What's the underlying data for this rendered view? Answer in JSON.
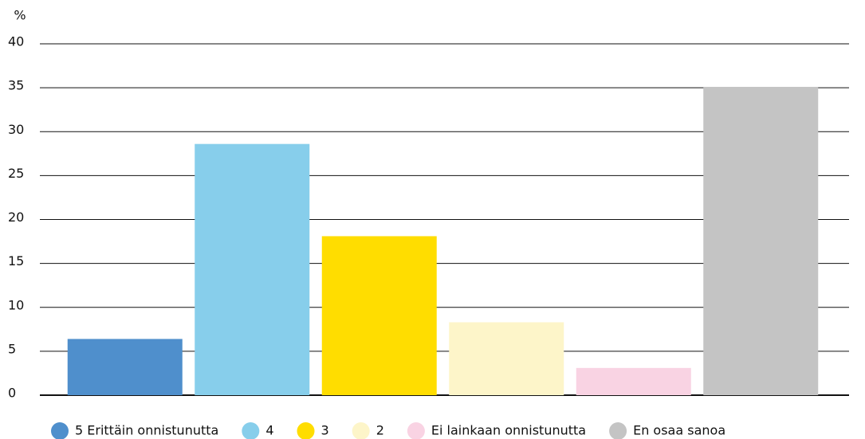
{
  "chart_data": {
    "type": "bar",
    "ylabel": "%",
    "categories": [
      "5 Erittäin onnistunutta",
      "4",
      "3",
      "2",
      "Ei lainkaan onnistunutta",
      "En osaa sanoa"
    ],
    "values": [
      6.4,
      28.6,
      18.1,
      8.3,
      3.1,
      35.1
    ],
    "colors": [
      "#4f8fcc",
      "#87ceeb",
      "#ffdd00",
      "#fdf5c9",
      "#f9d3e3",
      "#c4c4c4"
    ],
    "ylim": [
      0,
      40
    ],
    "yticks": [
      0,
      5,
      10,
      15,
      20,
      25,
      30,
      35,
      40
    ],
    "grid": true,
    "legend": "bottom"
  }
}
